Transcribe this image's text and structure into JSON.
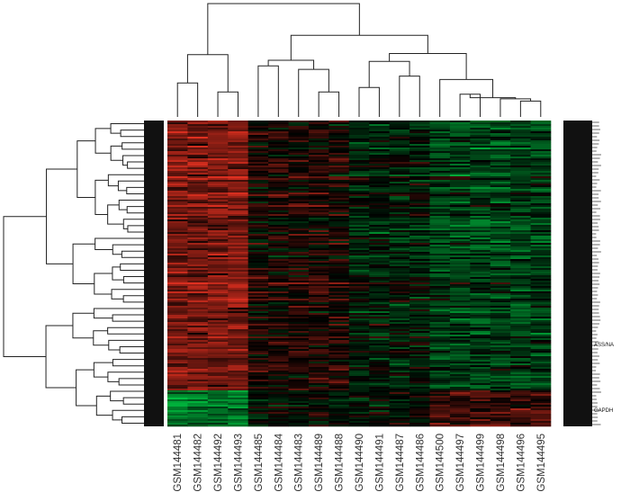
{
  "chart_data": {
    "type": "heatmap",
    "title": "",
    "xlabel": "",
    "ylabel": "",
    "columns": [
      "GSM144481",
      "GSM144482",
      "GSM144492",
      "GSM144493",
      "GSM144485",
      "GSM144484",
      "GSM144483",
      "GSM144489",
      "GSM144488",
      "GSM144490",
      "GSM144491",
      "GSM144487",
      "GSM144486",
      "GSM144500",
      "GSM144497",
      "GSM144499",
      "GSM144498",
      "GSM144496",
      "GSM144495"
    ],
    "row_labels_visible": [
      "ASS/NA",
      "GAPDH"
    ],
    "color_scale": {
      "low": "#00c040",
      "mid": "#000000",
      "high": "#e03020"
    },
    "column_dendrogram": true,
    "row_dendrogram": true,
    "grid": false,
    "legend": "none"
  }
}
